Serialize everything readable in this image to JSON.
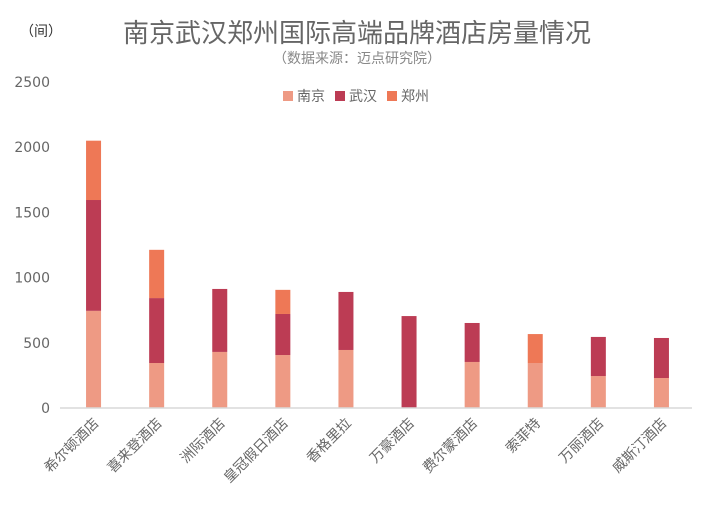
{
  "chart_data": {
    "type": "bar",
    "stacked": true,
    "title": "南京武汉郑州国际高端品牌酒店房量情况",
    "subtitle": "（数据来源：迈点研究院）",
    "ylabel": "（间）",
    "xlabel": "",
    "ylim": [
      0,
      2500
    ],
    "yticks": [
      0,
      500,
      1000,
      1500,
      2000,
      2500
    ],
    "grid": false,
    "legend_position": "top-center",
    "categories": [
      "希尔顿酒店",
      "喜来登酒店",
      "洲际酒店",
      "皇冠假日酒店",
      "香格里拉",
      "万豪酒店",
      "费尔蒙酒店",
      "索菲特",
      "万丽酒店",
      "威斯汀酒店"
    ],
    "series": [
      {
        "name": "南京",
        "color": "#EE9A84",
        "values": [
          745,
          345,
          430,
          406,
          445,
          0,
          353,
          345,
          245,
          230
        ]
      },
      {
        "name": "武汉",
        "color": "#BC3C54",
        "values": [
          850,
          498,
          483,
          315,
          445,
          705,
          299,
          0,
          300,
          307
        ]
      },
      {
        "name": "郑州",
        "color": "#EE7856",
        "values": [
          455,
          370,
          0,
          185,
          0,
          0,
          0,
          222,
          0,
          0
        ]
      }
    ]
  }
}
